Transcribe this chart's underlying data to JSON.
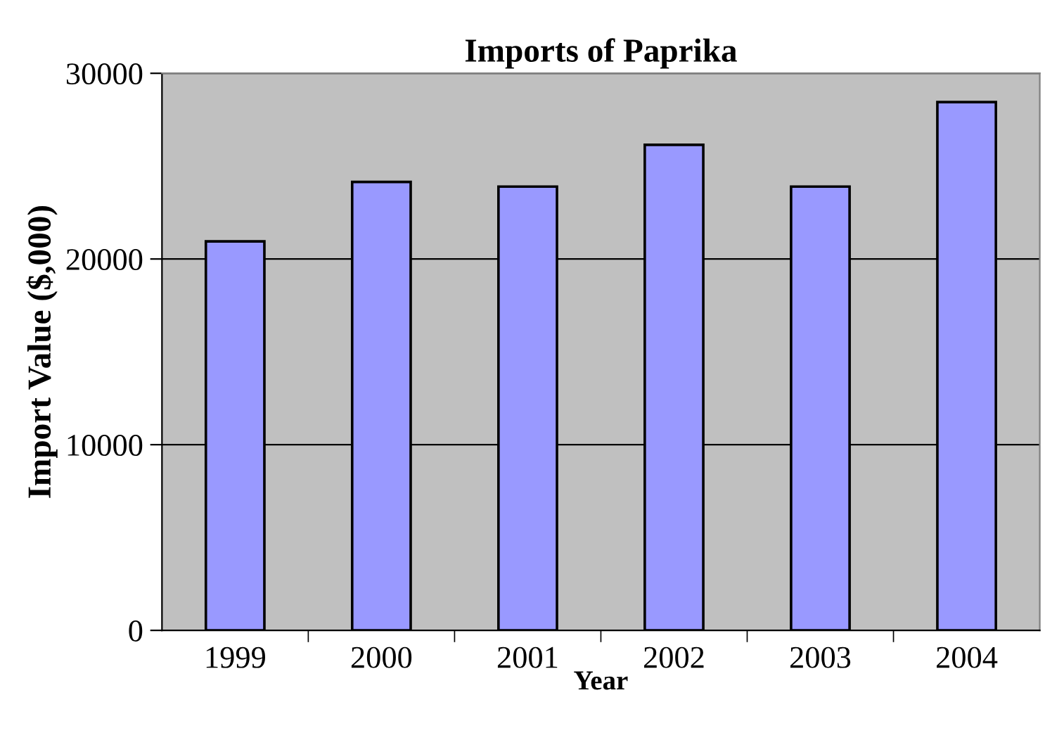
{
  "chart_data": {
    "type": "bar",
    "title": "Imports of Paprika",
    "xlabel": "Year",
    "ylabel": "Import Value ($,000)",
    "categories": [
      "1999",
      "2000",
      "2001",
      "2002",
      "2003",
      "2004"
    ],
    "values": [
      20950,
      24150,
      23900,
      26150,
      23900,
      28450
    ],
    "color": "#9999ff",
    "ylim": [
      0,
      30000
    ],
    "yticks": [
      0,
      10000,
      20000,
      30000
    ],
    "grid": "y"
  }
}
